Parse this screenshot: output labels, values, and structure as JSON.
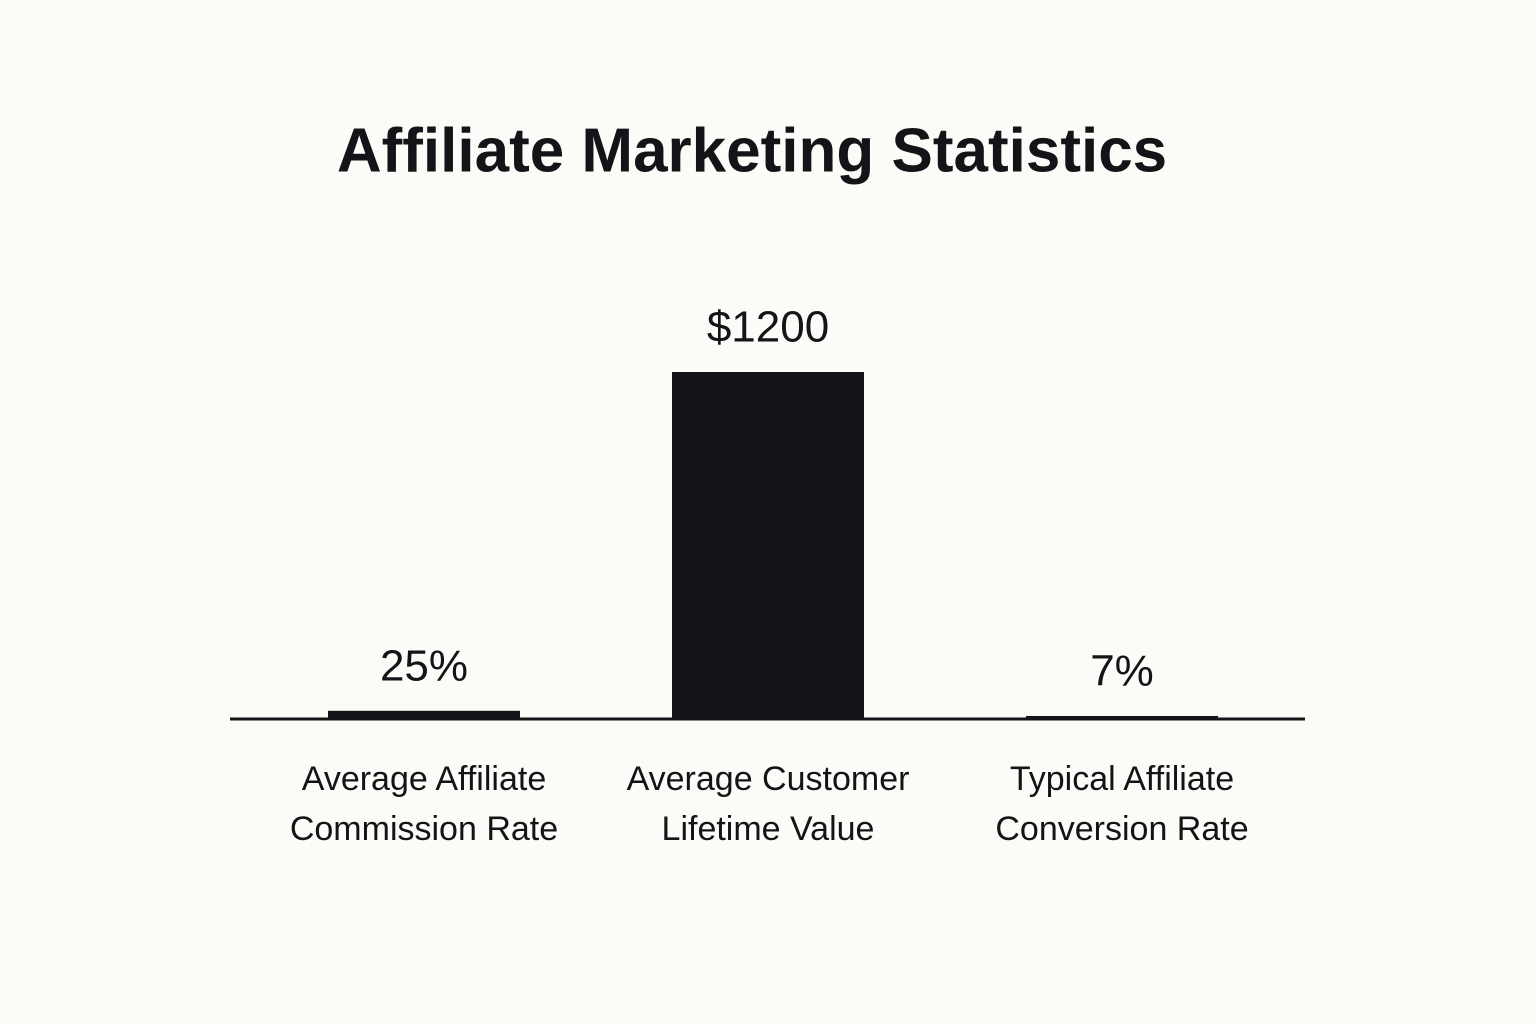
{
  "chart_data": {
    "type": "bar",
    "title": "Affiliate Marketing Statistics",
    "categories": [
      "Average Affiliate Commission Rate",
      "Average Customer Lifetime Value",
      "Typical Affiliate Conversion Rate"
    ],
    "values": [
      25,
      1200,
      7
    ],
    "value_labels": [
      "25%",
      "$1200",
      "7%"
    ],
    "color": "#131417"
  }
}
